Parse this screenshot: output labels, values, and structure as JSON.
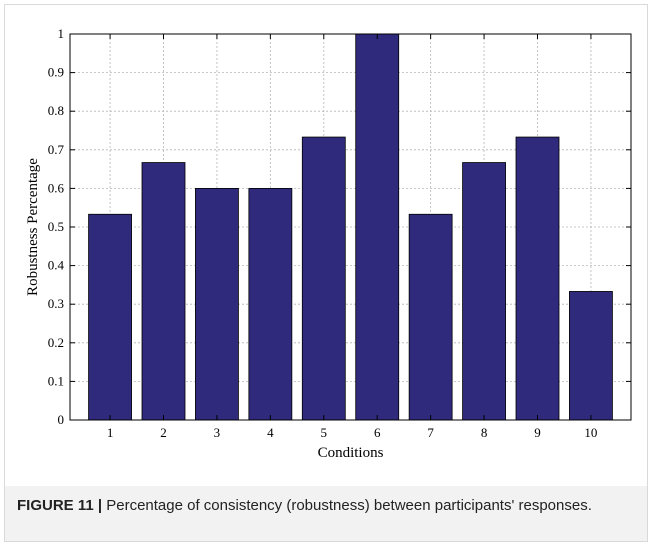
{
  "chart_data": {
    "type": "bar",
    "categories": [
      "1",
      "2",
      "3",
      "4",
      "5",
      "6",
      "7",
      "8",
      "9",
      "10"
    ],
    "values": [
      0.533,
      0.667,
      0.6,
      0.6,
      0.733,
      1.0,
      0.533,
      0.667,
      0.733,
      0.333
    ],
    "xlabel": "Conditions",
    "ylabel": "Robustness Percentage",
    "ylim": [
      0,
      1
    ],
    "yticks": [
      "0",
      "0.1",
      "0.2",
      "0.3",
      "0.4",
      "0.5",
      "0.6",
      "0.7",
      "0.8",
      "0.9",
      "1"
    ],
    "grid": true,
    "bar_color": "#2f2a7c"
  },
  "caption": {
    "label": "FIGURE 11 |",
    "text": "Percentage of consistency (robustness) between participants' responses."
  }
}
